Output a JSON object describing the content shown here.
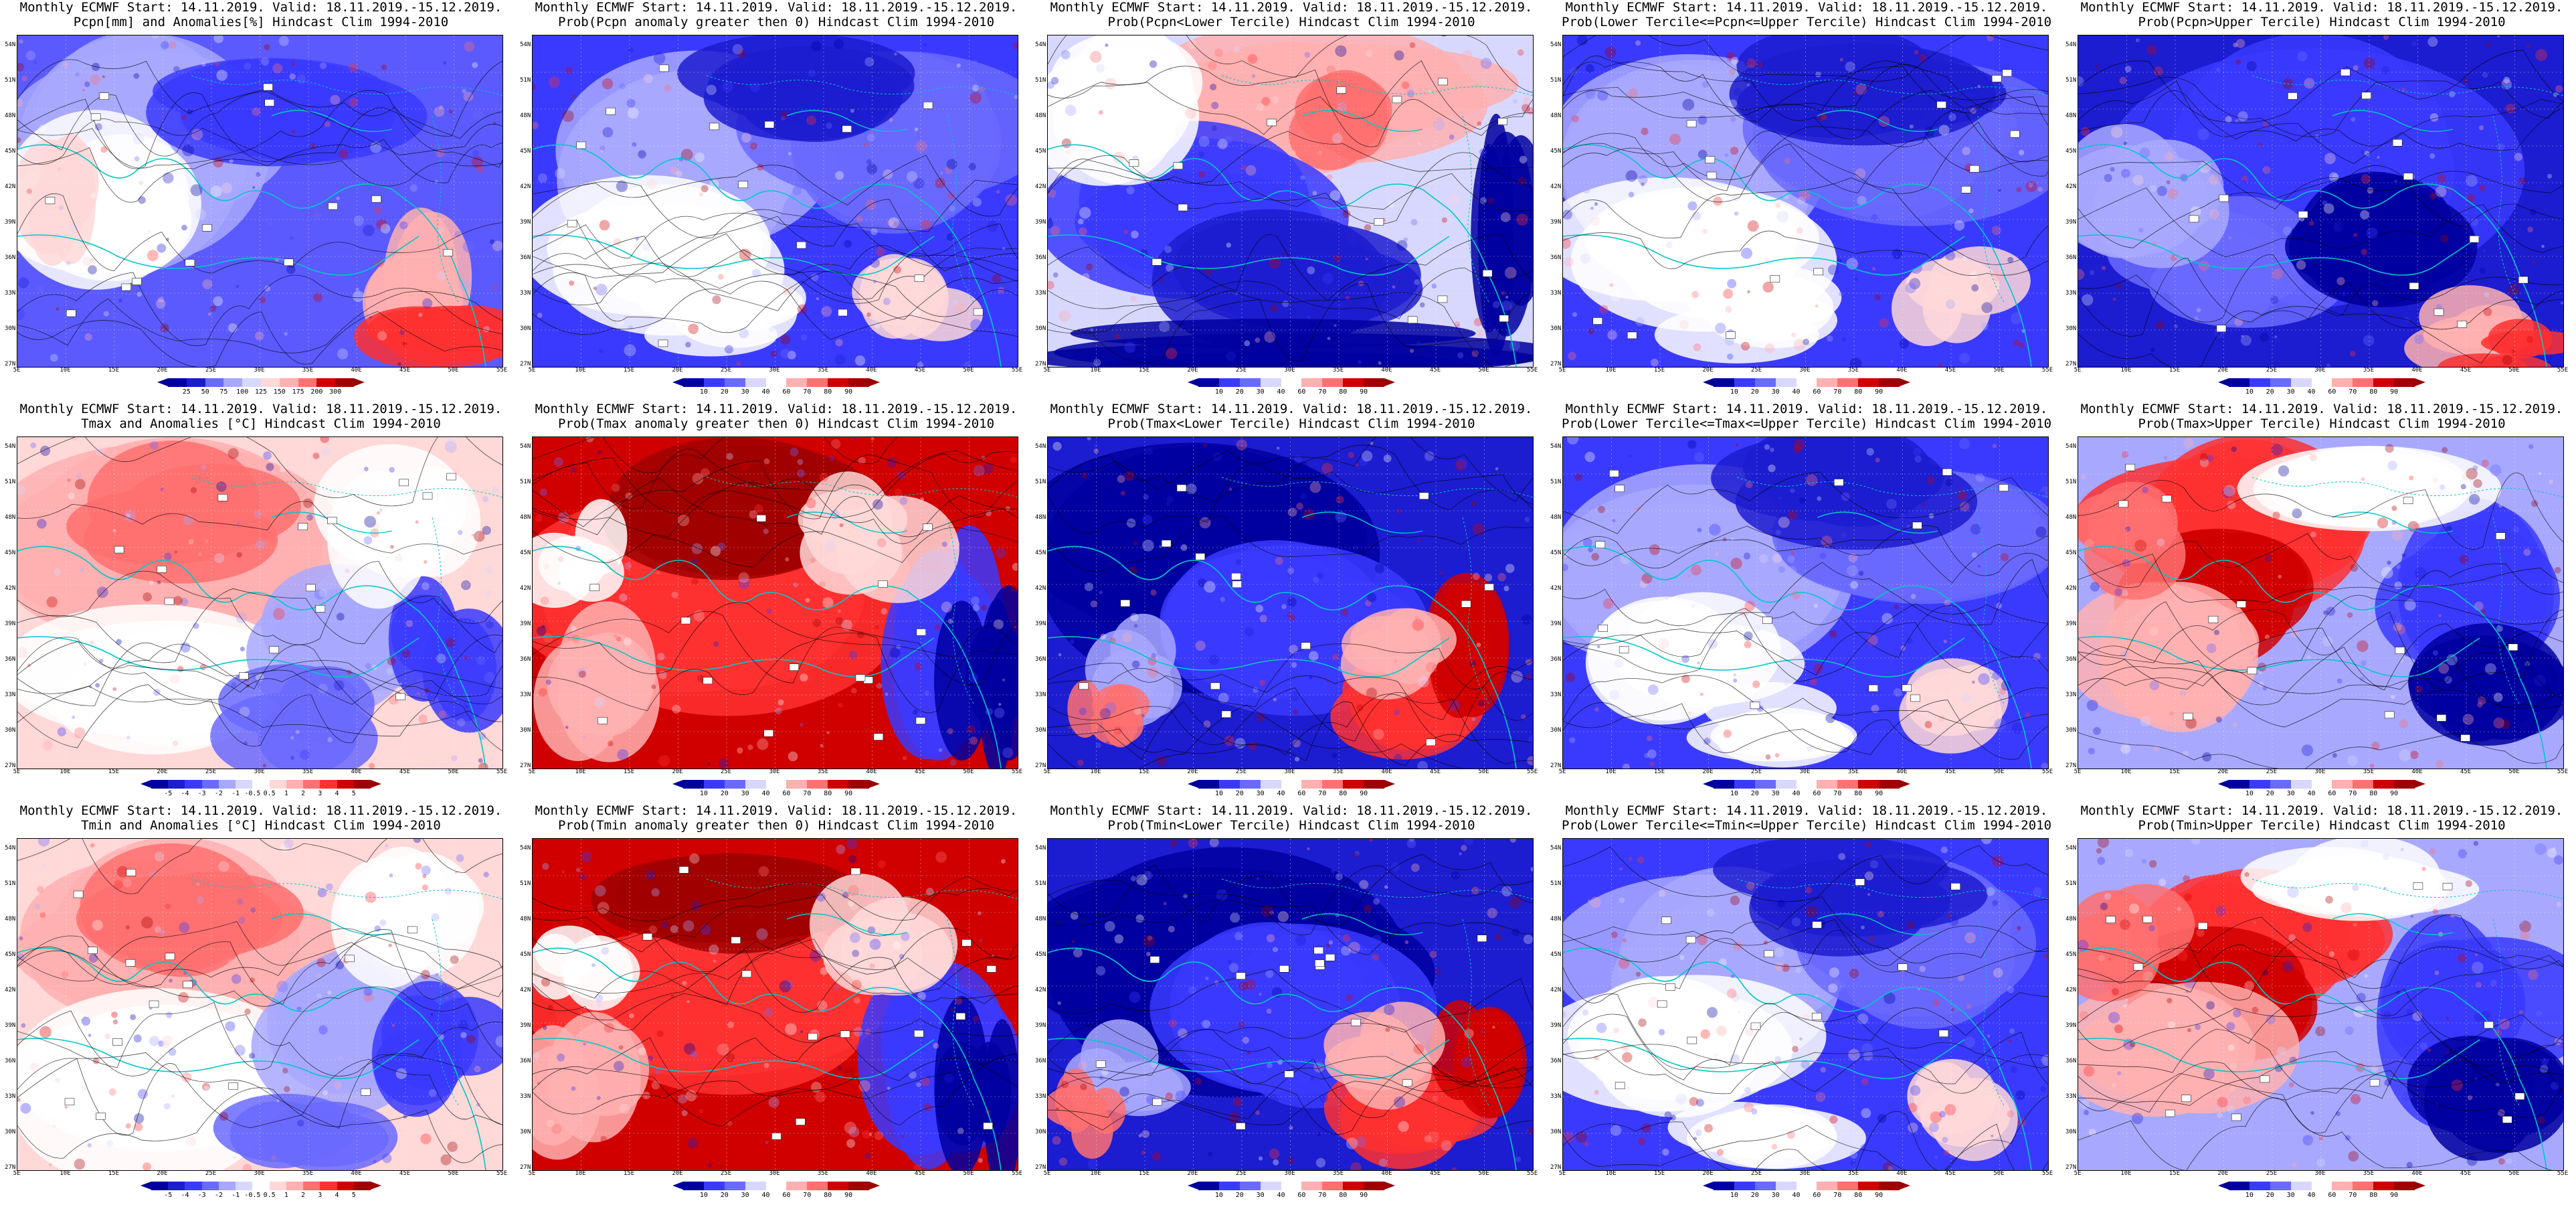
{
  "panels": [
    {
      "line1": "Monthly ECMWF Start: 14.11.2019. Valid: 18.11.2019.-15.12.2019.",
      "line2": "Pcpn[mm] and Anomalies[%] Hindcast Clim 1994-2010",
      "theme": "pcpn-anom",
      "ticks": [
        "25",
        "50",
        "75",
        "100",
        "125",
        "150",
        "175",
        "200",
        "300"
      ]
    },
    {
      "line1": "Monthly ECMWF Start: 14.11.2019. Valid: 18.11.2019.-15.12.2019.",
      "line2": "Prob(Pcpn anomaly greater then 0) Hindcast Clim 1994-2010",
      "theme": "blue",
      "ticks": [
        "10",
        "20",
        "30",
        "40",
        "60",
        "70",
        "80",
        "90"
      ]
    },
    {
      "line1": "Monthly ECMWF Start: 14.11.2019. Valid: 18.11.2019.-15.12.2019.",
      "line2": "Prob(Pcpn<Lower Tercile) Hindcast Clim 1994-2010",
      "theme": "mixed",
      "ticks": [
        "10",
        "20",
        "30",
        "40",
        "60",
        "70",
        "80",
        "90"
      ]
    },
    {
      "line1": "Monthly ECMWF Start: 14.11.2019. Valid: 18.11.2019.-15.12.2019.",
      "line2": "Prob(Lower Tercile<=Pcpn<=Upper Tercile) Hindcast Clim 1994-2010",
      "theme": "blue",
      "ticks": [
        "10",
        "20",
        "30",
        "40",
        "60",
        "70",
        "80",
        "90"
      ]
    },
    {
      "line1": "Monthly ECMWF Start: 14.11.2019. Valid: 18.11.2019.-15.12.2019.",
      "line2": "Prob(Pcpn>Upper Tercile) Hindcast Clim 1994-2010",
      "theme": "deepblue",
      "ticks": [
        "10",
        "20",
        "30",
        "40",
        "60",
        "70",
        "80",
        "90"
      ]
    },
    {
      "line1": "Monthly ECMWF Start: 14.11.2019. Valid: 18.11.2019.-15.12.2019.",
      "line2": "Tmax and Anomalies [°C] Hindcast Clim 1994-2010",
      "theme": "temp-anom",
      "ticks": [
        "-5",
        "-4",
        "-3",
        "-2",
        "-1",
        "-0.5",
        "0.5",
        "1",
        "2",
        "3",
        "4",
        "5"
      ]
    },
    {
      "line1": "Monthly ECMWF Start: 14.11.2019. Valid: 18.11.2019.-15.12.2019.",
      "line2": "Prob(Tmax anomaly greater then 0) Hindcast Clim 1994-2010",
      "theme": "red",
      "ticks": [
        "10",
        "20",
        "30",
        "40",
        "60",
        "70",
        "80",
        "90"
      ]
    },
    {
      "line1": "Monthly ECMWF Start: 14.11.2019. Valid: 18.11.2019.-15.12.2019.",
      "line2": "Prob(Tmax<Lower Tercile) Hindcast Clim 1994-2010",
      "theme": "deepblue-red",
      "ticks": [
        "10",
        "20",
        "30",
        "40",
        "60",
        "70",
        "80",
        "90"
      ]
    },
    {
      "line1": "Monthly ECMWF Start: 14.11.2019. Valid: 18.11.2019.-15.12.2019.",
      "line2": "Prob(Lower Tercile<=Tmax<=Upper Tercile) Hindcast Clim 1994-2010",
      "theme": "blue",
      "ticks": [
        "10",
        "20",
        "30",
        "40",
        "60",
        "70",
        "80",
        "90"
      ]
    },
    {
      "line1": "Monthly ECMWF Start: 14.11.2019. Valid: 18.11.2019.-15.12.2019.",
      "line2": "Prob(Tmax>Upper Tercile) Hindcast Clim 1994-2010",
      "theme": "red-blue",
      "ticks": [
        "10",
        "20",
        "30",
        "40",
        "60",
        "70",
        "80",
        "90"
      ]
    },
    {
      "line1": "Monthly ECMWF Start: 14.11.2019. Valid: 18.11.2019.-15.12.2019.",
      "line2": "Tmin and Anomalies [°C] Hindcast Clim 1994-2010",
      "theme": "temp-anom",
      "ticks": [
        "-5",
        "-4",
        "-3",
        "-2",
        "-1",
        "-0.5",
        "0.5",
        "1",
        "2",
        "3",
        "4",
        "5"
      ]
    },
    {
      "line1": "Monthly ECMWF Start: 14.11.2019. Valid: 18.11.2019.-15.12.2019.",
      "line2": "Prob(Tmin anomaly greater then 0) Hindcast Clim 1994-2010",
      "theme": "red",
      "ticks": [
        "10",
        "20",
        "30",
        "40",
        "60",
        "70",
        "80",
        "90"
      ]
    },
    {
      "line1": "Monthly ECMWF Start: 14.11.2019. Valid: 18.11.2019.-15.12.2019.",
      "line2": "Prob(Tmin<Lower Tercile) Hindcast Clim 1994-2010",
      "theme": "deepblue-red",
      "ticks": [
        "10",
        "20",
        "30",
        "40",
        "60",
        "70",
        "80",
        "90"
      ]
    },
    {
      "line1": "Monthly ECMWF Start: 14.11.2019. Valid: 18.11.2019.-15.12.2019.",
      "line2": "Prob(Lower Tercile<=Tmin<=Upper Tercile) Hindcast Clim 1994-2010",
      "theme": "blue",
      "ticks": [
        "10",
        "20",
        "30",
        "40",
        "60",
        "70",
        "80",
        "90"
      ]
    },
    {
      "line1": "Monthly ECMWF Start: 14.11.2019. Valid: 18.11.2019.-15.12.2019.",
      "line2": "Prob(Tmin>Upper Tercile) Hindcast Clim 1994-2010",
      "theme": "red-blue",
      "ticks": [
        "10",
        "20",
        "30",
        "40",
        "60",
        "70",
        "80",
        "90"
      ]
    }
  ],
  "lat_labels": [
    "54N",
    "51N",
    "48N",
    "45N",
    "42N",
    "39N",
    "36N",
    "33N",
    "30N",
    "27N"
  ],
  "lon_labels": [
    "5E",
    "10E",
    "15E",
    "20E",
    "25E",
    "30E",
    "35E",
    "40E",
    "45E",
    "50E",
    "55E"
  ],
  "colors": {
    "land_line": "#00c8c8",
    "contour": "#000000",
    "deep_blue": "#0000a0",
    "blue": "#3a3aff",
    "light_blue": "#a8a8ff",
    "white": "#ffffff",
    "light_red": "#ffb0b0",
    "red": "#ff3030",
    "deep_red": "#a00000"
  }
}
